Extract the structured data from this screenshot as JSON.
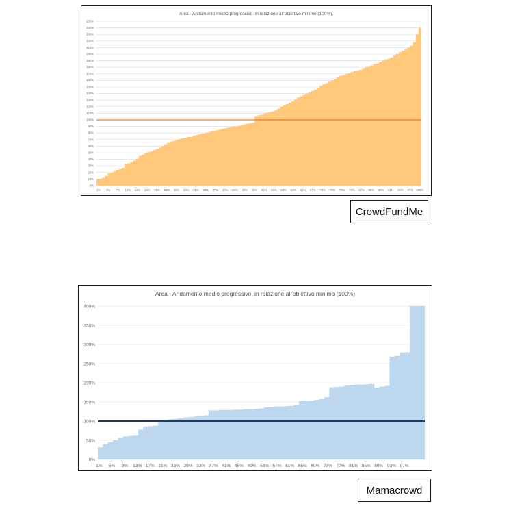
{
  "charts": [
    {
      "caption": "CrowdFundMe",
      "chart_data": {
        "type": "area",
        "title": "Area - Andamento medio progressivo, in relazione all'obiettivo minimo (100%),",
        "xlabel": "",
        "ylabel": "",
        "ylim": [
          0,
          250
        ],
        "y_ticks": [
          0,
          10,
          20,
          30,
          40,
          50,
          60,
          70,
          80,
          90,
          100,
          110,
          120,
          130,
          140,
          150,
          160,
          170,
          180,
          190,
          200,
          210,
          220,
          230,
          240,
          250
        ],
        "x_ticks": [
          "1%",
          "4%",
          "7%",
          "10%",
          "13%",
          "16%",
          "19%",
          "22%",
          "25%",
          "28%",
          "31%",
          "34%",
          "37%",
          "40%",
          "43%",
          "46%",
          "49%",
          "52%",
          "55%",
          "58%",
          "61%",
          "64%",
          "67%",
          "70%",
          "73%",
          "76%",
          "79%",
          "82%",
          "85%",
          "88%",
          "91%",
          "94%",
          "97%",
          "100%"
        ],
        "reference_line": 100,
        "grid": true,
        "series": [
          {
            "values": [
              10,
              10,
              12,
              15,
              19,
              20,
              22,
              24,
              25,
              27,
              33,
              34,
              36,
              38,
              41,
              45,
              47,
              49,
              51,
              52,
              54,
              56,
              58,
              60,
              62,
              65,
              67,
              68,
              70,
              71,
              72,
              73,
              74,
              74,
              76,
              77,
              78,
              79,
              80,
              81,
              82,
              83,
              84,
              85,
              86,
              87,
              88,
              89,
              90,
              90,
              91,
              92,
              93,
              94,
              95,
              96,
              105,
              107,
              108,
              110,
              111,
              112,
              113,
              115,
              117,
              120,
              122,
              124,
              126,
              128,
              131,
              134,
              136,
              138,
              140,
              142,
              144,
              146,
              149,
              152,
              154,
              156,
              158,
              160,
              162,
              165,
              167,
              168,
              170,
              171,
              173,
              174,
              175,
              176,
              178,
              180,
              181,
              183,
              185,
              186,
              188,
              190,
              192,
              193,
              195,
              198,
              200,
              203,
              205,
              207,
              210,
              213,
              218,
              230,
              240
            ]
          }
        ],
        "colors": {
          "fill": "#ffc87a",
          "reference": "#ed7d31"
        }
      }
    },
    {
      "caption": "Mamacrowd",
      "chart_data": {
        "type": "area",
        "title": "Area - Andamento medio progressivo, in relazione all'obiettivo minimo (100%)",
        "xlabel": "",
        "ylabel": "",
        "ylim": [
          0,
          400
        ],
        "y_ticks": [
          0,
          50,
          100,
          150,
          200,
          250,
          300,
          350,
          400
        ],
        "x_ticks": [
          "1%",
          "5%",
          "9%",
          "13%",
          "17%",
          "21%",
          "25%",
          "29%",
          "33%",
          "37%",
          "41%",
          "45%",
          "49%",
          "53%",
          "57%",
          "61%",
          "65%",
          "69%",
          "73%",
          "77%",
          "81%",
          "85%",
          "89%",
          "93%",
          "97%"
        ],
        "reference_line": 100,
        "grid": true,
        "series": [
          {
            "values": [
              32,
              40,
              45,
              50,
              57,
              60,
              61,
              62,
              78,
              86,
              87,
              88,
              102,
              103,
              105,
              106,
              108,
              110,
              111,
              112,
              113,
              115,
              128,
              128,
              129,
              129,
              129,
              130,
              130,
              131,
              131,
              132,
              133,
              136,
              137,
              138,
              138,
              139,
              140,
              141,
              152,
              152,
              153,
              155,
              158,
              162,
              188,
              189,
              190,
              193,
              194,
              195,
              195,
              196,
              197,
              187,
              190,
              192,
              268,
              270,
              279,
              280,
              400,
              400,
              400
            ]
          }
        ],
        "colors": {
          "fill": "#bdd7ee",
          "reference": "#1f3864"
        }
      }
    }
  ]
}
